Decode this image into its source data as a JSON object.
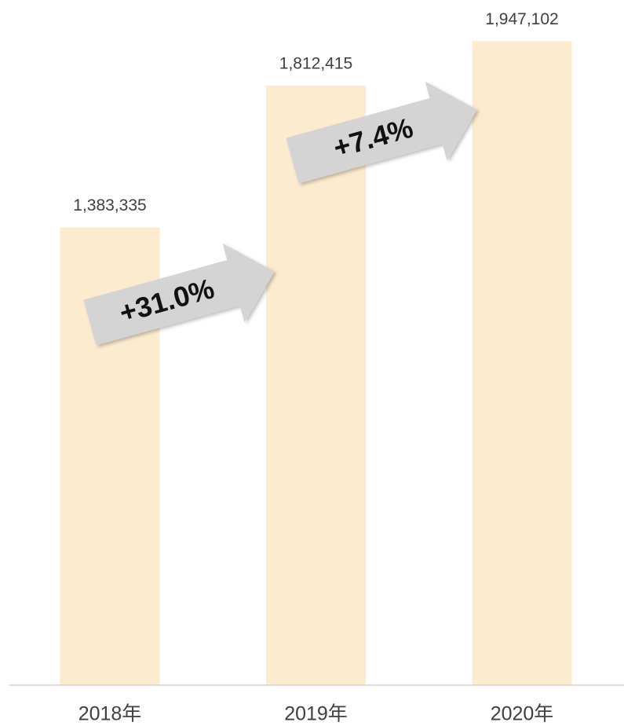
{
  "chart_data": {
    "type": "bar",
    "categories": [
      "2018年",
      "2019年",
      "2020年"
    ],
    "values": [
      1383335,
      1812415,
      1947102
    ],
    "value_labels": [
      "1,383,335",
      "1,812,415",
      "1,947,102"
    ],
    "color": "#fdebcf",
    "ylim": [
      0,
      2000000
    ],
    "annotations": [
      "+31.0%",
      "+7.4%"
    ]
  }
}
